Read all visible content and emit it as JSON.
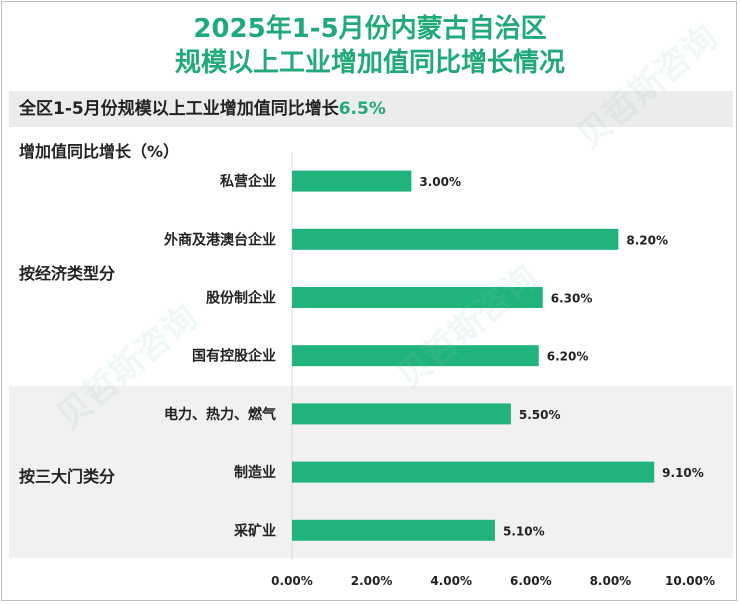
{
  "title_line1": "2025年1-5月份内蒙古自治区",
  "title_line2": "规模以上工业增加值同比增长情况",
  "summary": {
    "prefix": "全区1-5月份规模以上工业增加值同比增长",
    "value": "6.5%"
  },
  "watermark_text": "贝哲斯咨询",
  "colors": {
    "accent": "#1faa77",
    "bar": "#21b37c",
    "axis": "#d9d9d9"
  },
  "chart_data": {
    "type": "bar",
    "orientation": "horizontal",
    "title": "2025年1-5月份内蒙古自治区规模以上工业增加值同比增长情况",
    "ylabel": "增加值同比增长（%）",
    "xlim": [
      0,
      10
    ],
    "xticks": [
      "0.00%",
      "2.00%",
      "4.00%",
      "6.00%",
      "8.00%",
      "10.00%"
    ],
    "grid": false,
    "groups": [
      {
        "name": "按经济类型分",
        "categories": [
          "私营企业",
          "外商及港澳台企业",
          "股份制企业",
          "国有控股企业"
        ]
      },
      {
        "name": "按三大门类分",
        "categories": [
          "电力、热力、燃气",
          "制造业",
          "采矿业"
        ]
      }
    ],
    "categories": [
      "私营企业",
      "外商及港澳台企业",
      "股份制企业",
      "国有控股企业",
      "电力、热力、燃气",
      "制造业",
      "采矿业"
    ],
    "values": [
      3.0,
      8.2,
      6.3,
      6.2,
      5.5,
      9.1,
      5.1
    ],
    "value_labels": [
      "3.00%",
      "8.20%",
      "6.30%",
      "6.20%",
      "5.50%",
      "9.10%",
      "5.10%"
    ]
  }
}
